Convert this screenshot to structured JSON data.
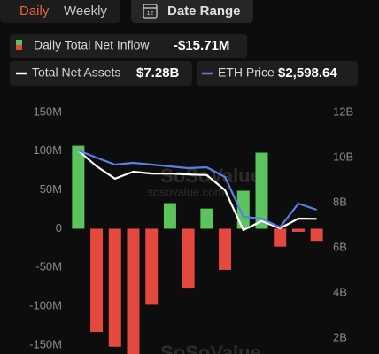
{
  "controls": {
    "tabs": [
      "Daily",
      "Weekly"
    ],
    "date_range": "Date Range"
  },
  "watermark": [
    "SoSoValue",
    "sosovalue.com"
  ],
  "chart_data": {
    "type": "bar",
    "series": [
      {
        "name": "Daily Total Net Inflow",
        "type": "bar",
        "color": "#5cc45c",
        "negative_color": "#e5483f",
        "values": [
          107,
          -133,
          -152,
          -175,
          -98,
          33,
          -76,
          26,
          -53,
          49,
          98,
          -23,
          -4,
          -15.71
        ],
        "value_labels": [
          null,
          null,
          null,
          null,
          null,
          null,
          null,
          null,
          null,
          null,
          null,
          null,
          null,
          "-$15.71M"
        ]
      },
      {
        "name": "Total Net Assets",
        "type": "line",
        "color": "#ffffff",
        "axis": "y2",
        "values": [
          10.31,
          9.61,
          9.06,
          9.37,
          9.29,
          9.29,
          9.25,
          9.22,
          8.55,
          6.78,
          7.18,
          6.86,
          7.29,
          7.28
        ],
        "value_labels": [
          null,
          null,
          null,
          null,
          null,
          null,
          null,
          null,
          null,
          null,
          null,
          null,
          null,
          "$7.28B"
        ]
      },
      {
        "name": "ETH Price",
        "type": "line",
        "color": "#5b7fe8",
        "axis": "y3",
        "values": [
          3298,
          3214,
          3131,
          3152,
          3131,
          3110,
          3089,
          3100,
          2985,
          2515,
          2494,
          2389,
          2671,
          2598.64
        ],
        "value_labels": [
          null,
          null,
          null,
          null,
          null,
          null,
          null,
          null,
          null,
          null,
          null,
          null,
          null,
          "$2,598.64"
        ]
      }
    ],
    "ylim": [
      -161.4,
      163.6
    ],
    "yticks": [
      {
        "value": 150,
        "label": "150M"
      },
      {
        "value": 100,
        "label": "100M"
      },
      {
        "value": 50,
        "label": "50M"
      },
      0,
      {
        "value": -50,
        "label": "-50M"
      },
      {
        "value": -100,
        "label": "-100M"
      },
      {
        "value": -150,
        "label": "-150M"
      }
    ],
    "y2lim": [
      1.29,
      12.47
    ],
    "y2ticks": [
      {
        "value": 12,
        "label": "12B"
      },
      {
        "value": 10,
        "label": "10B"
      },
      {
        "value": 8,
        "label": "8B"
      },
      {
        "value": 6,
        "label": "6B"
      },
      {
        "value": 4,
        "label": "4B"
      },
      {
        "value": 2,
        "label": "2B"
      }
    ],
    "y3lim": [
      895,
      3873
    ],
    "grid": false
  }
}
